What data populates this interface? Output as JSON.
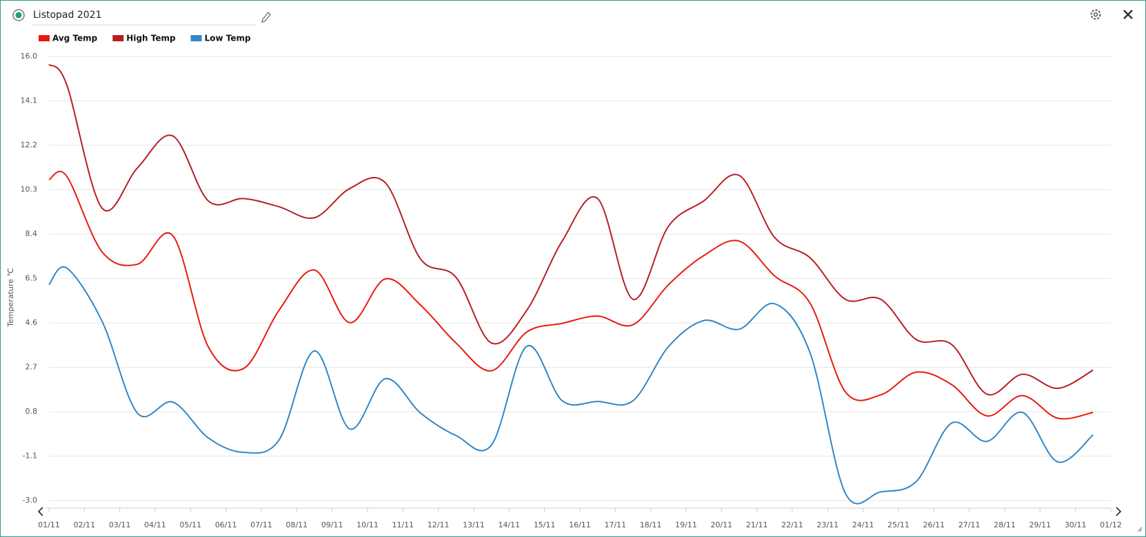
{
  "chart_data": {
    "type": "line",
    "title": "Listopad 2021",
    "y_label": "Temperature ℃",
    "x": [
      0,
      0.5,
      1.5,
      2.5,
      3.5,
      4.5,
      5.5,
      6.5,
      7.5,
      8.5,
      9.5,
      10.5,
      11.5,
      12.5,
      13.5,
      14.5,
      15.5,
      16.5,
      17.5,
      18.5,
      19.5,
      20.5,
      21.5,
      22.5,
      23.5,
      24.5,
      25.5,
      26.5,
      27.5,
      28.5,
      29.5
    ],
    "series": [
      {
        "name": "Avg Temp",
        "color": "#e8190f",
        "values": [
          10.73,
          10.88,
          7.64,
          7.11,
          8.33,
          3.58,
          2.65,
          5.14,
          6.86,
          4.61,
          6.48,
          5.36,
          3.74,
          2.55,
          4.21,
          4.58,
          4.89,
          4.52,
          6.23,
          7.48,
          8.1,
          6.61,
          5.45,
          1.65,
          1.52,
          2.49,
          1.96,
          0.62,
          1.49,
          0.52,
          0.77
        ]
      },
      {
        "name": "High Temp",
        "color": "#b81d24",
        "values": [
          15.66,
          14.8,
          9.51,
          11.23,
          12.6,
          9.82,
          9.92,
          9.57,
          9.1,
          10.35,
          10.6,
          7.33,
          6.55,
          3.74,
          5.14,
          8.1,
          9.92,
          5.61,
          8.73,
          9.82,
          10.91,
          8.26,
          7.39,
          5.61,
          5.61,
          3.89,
          3.68,
          1.55,
          2.4,
          1.8,
          2.58
        ]
      },
      {
        "name": "Low Temp",
        "color": "#2f87c8",
        "values": [
          6.23,
          6.95,
          4.67,
          0.74,
          1.21,
          -0.32,
          -0.94,
          -0.41,
          3.4,
          0.06,
          2.21,
          0.74,
          -0.22,
          -0.63,
          3.6,
          1.27,
          1.24,
          1.27,
          3.58,
          4.7,
          4.33,
          5.42,
          3.33,
          -2.69,
          -2.63,
          -2.19,
          0.31,
          -0.47,
          0.77,
          -1.35,
          -0.19
        ]
      }
    ],
    "xlim": [
      0,
      30
    ],
    "xticks": [
      {
        "value": 0,
        "label": "01/11"
      },
      {
        "value": 1,
        "label": "02/11"
      },
      {
        "value": 2,
        "label": "03/11"
      },
      {
        "value": 3,
        "label": "04/11"
      },
      {
        "value": 4,
        "label": "05/11"
      },
      {
        "value": 5,
        "label": "06/11"
      },
      {
        "value": 6,
        "label": "07/11"
      },
      {
        "value": 7,
        "label": "08/11"
      },
      {
        "value": 8,
        "label": "09/11"
      },
      {
        "value": 9,
        "label": "10/11"
      },
      {
        "value": 10,
        "label": "11/11"
      },
      {
        "value": 11,
        "label": "12/11"
      },
      {
        "value": 12,
        "label": "13/11"
      },
      {
        "value": 13,
        "label": "14/11"
      },
      {
        "value": 14,
        "label": "15/11"
      },
      {
        "value": 15,
        "label": "16/11"
      },
      {
        "value": 16,
        "label": "17/11"
      },
      {
        "value": 17,
        "label": "18/11"
      },
      {
        "value": 18,
        "label": "19/11"
      },
      {
        "value": 19,
        "label": "20/11"
      },
      {
        "value": 20,
        "label": "21/11"
      },
      {
        "value": 21,
        "label": "22/11"
      },
      {
        "value": 22,
        "label": "23/11"
      },
      {
        "value": 23,
        "label": "24/11"
      },
      {
        "value": 24,
        "label": "25/11"
      },
      {
        "value": 25,
        "label": "26/11"
      },
      {
        "value": 26,
        "label": "27/11"
      },
      {
        "value": 27,
        "label": "28/11"
      },
      {
        "value": 28,
        "label": "29/11"
      },
      {
        "value": 29,
        "label": "30/11"
      },
      {
        "value": 30,
        "label": "01/12"
      }
    ],
    "ylim": [
      -3,
      16
    ],
    "yticks": [
      {
        "value": 16,
        "label": "16.0"
      },
      14.1,
      12.2,
      10.3,
      8.4,
      6.5,
      4.6,
      2.7,
      0.8,
      -1.1,
      {
        "value": -3,
        "label": "-3.0"
      }
    ],
    "grid": true
  }
}
